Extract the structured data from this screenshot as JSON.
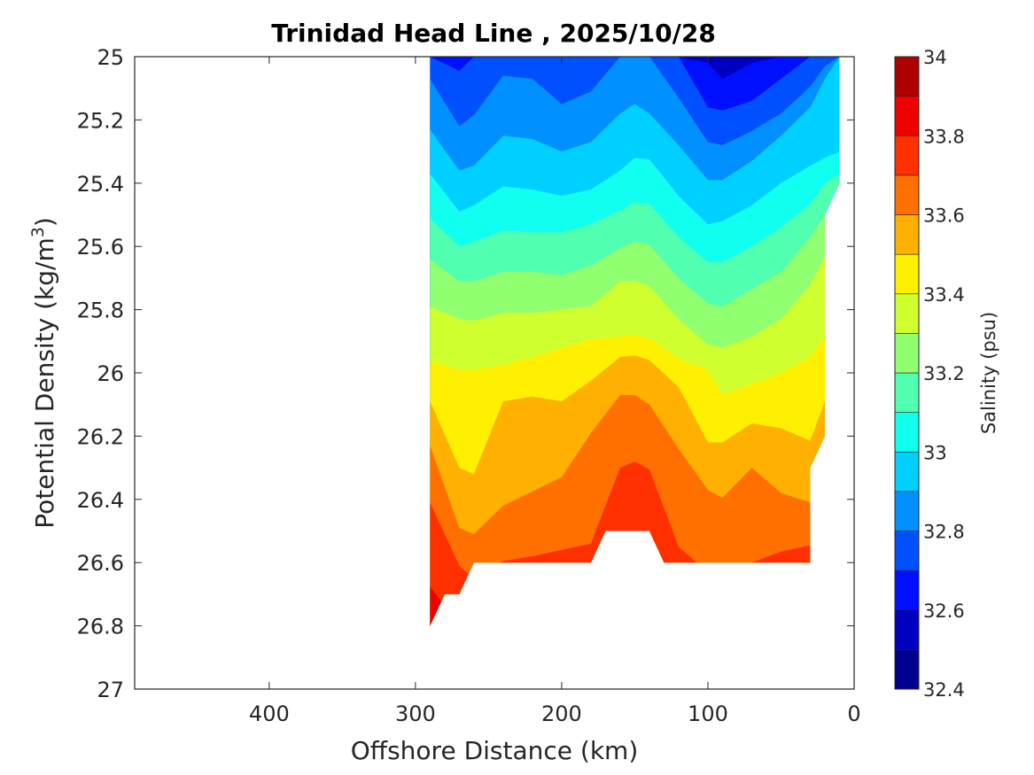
{
  "chart_data": {
    "type": "contourf",
    "title": "Trinidad Head Line , 2025/10/28",
    "xlabel": "Offshore Distance (km)",
    "ylabel_main": "Potential Density (kg/m",
    "ylabel_sup": "3",
    "ylabel_end": ")",
    "colorbar_label": "Salinity (psu)",
    "xlim": [
      0,
      492
    ],
    "x_reversed": true,
    "ylim": [
      25,
      27
    ],
    "y_reversed": true,
    "xticks": [
      400,
      300,
      200,
      100,
      0
    ],
    "xtick_labels": [
      "400",
      "300",
      "200",
      "100",
      "0"
    ],
    "yticks": [
      25,
      25.2,
      25.4,
      25.6,
      25.8,
      26,
      26.2,
      26.4,
      26.6,
      26.8,
      27
    ],
    "ytick_labels": [
      "25",
      "25.2",
      "25.4",
      "25.6",
      "25.8",
      "26",
      "26.2",
      "26.4",
      "26.6",
      "26.8",
      "27"
    ],
    "colorbar": {
      "range": [
        32.4,
        34
      ],
      "ticks": [
        32.4,
        32.6,
        32.8,
        33,
        33.2,
        33.4,
        33.6,
        33.8,
        34
      ],
      "tick_labels": [
        "32.4",
        "32.6",
        "32.8",
        "33",
        "33.2",
        "33.4",
        "33.6",
        "33.8",
        "34"
      ],
      "colors": [
        "#000090",
        "#0000c0",
        "#0010ff",
        "#0050ff",
        "#0090ff",
        "#00d0ff",
        "#10ffef",
        "#50ffaf",
        "#90ff70",
        "#d0ff30",
        "#ffef00",
        "#ffb000",
        "#ff7000",
        "#ff3000",
        "#ef0000",
        "#b00000"
      ]
    },
    "stations_km": [
      290,
      270,
      260,
      240,
      220,
      200,
      180,
      160,
      150,
      140,
      120,
      100,
      90,
      70,
      50,
      30,
      20,
      10
    ],
    "data_coverage": [
      [
        290,
        25
      ],
      [
        10,
        25
      ],
      [
        10,
        25.4
      ],
      [
        20,
        25.5
      ],
      [
        20,
        26.2
      ],
      [
        30,
        26.3
      ],
      [
        30,
        26.6
      ],
      [
        130,
        26.6
      ],
      [
        140,
        26.5
      ],
      [
        170,
        26.5
      ],
      [
        180,
        26.6
      ],
      [
        260,
        26.6
      ],
      [
        270,
        26.7
      ],
      [
        280,
        26.7
      ],
      [
        290,
        26.8
      ]
    ],
    "isohalines": [
      {
        "level": 32.6,
        "density": [
          25,
          25,
          25,
          25,
          25,
          25,
          25,
          25,
          25,
          25,
          25,
          25.02,
          25.07,
          25.02,
          25,
          25,
          25,
          25
        ]
      },
      {
        "level": 32.7,
        "density": [
          25,
          25.045,
          25,
          25,
          25,
          25,
          25,
          25,
          25,
          25,
          25,
          25.16,
          25.17,
          25.14,
          25.07,
          25,
          25,
          25
        ]
      },
      {
        "level": 32.8,
        "density": [
          25.07,
          25.22,
          25.185,
          25.06,
          25.07,
          25.15,
          25.11,
          25,
          25,
          25,
          25.13,
          25.27,
          25.28,
          25.235,
          25.18,
          25.095,
          25.03,
          25
        ]
      },
      {
        "level": 32.9,
        "density": [
          25.23,
          25.36,
          25.345,
          25.25,
          25.26,
          25.3,
          25.27,
          25.18,
          25.15,
          25.18,
          25.28,
          25.39,
          25.39,
          25.33,
          25.25,
          25.16,
          25.07,
          25
        ]
      },
      {
        "level": 33.0,
        "density": [
          25.37,
          25.49,
          25.47,
          25.41,
          25.42,
          25.44,
          25.42,
          25.36,
          25.32,
          25.325,
          25.44,
          25.53,
          25.52,
          25.47,
          25.4,
          25.345,
          25.32,
          25.3
        ]
      },
      {
        "level": 33.1,
        "density": [
          25.51,
          25.6,
          25.585,
          25.55,
          25.555,
          25.555,
          25.53,
          25.485,
          25.46,
          25.465,
          25.57,
          25.65,
          25.65,
          25.6,
          25.54,
          25.465,
          25.4,
          25.37
        ]
      },
      {
        "level": 33.2,
        "density": [
          25.64,
          25.71,
          25.71,
          25.68,
          25.68,
          25.69,
          25.66,
          25.605,
          25.585,
          25.595,
          25.7,
          25.78,
          25.79,
          25.735,
          25.68,
          25.57,
          25.5,
          25.45
        ]
      },
      {
        "level": 33.3,
        "density": [
          25.79,
          25.83,
          25.835,
          25.81,
          25.81,
          25.8,
          25.79,
          25.71,
          25.71,
          25.725,
          25.83,
          25.91,
          25.92,
          25.885,
          25.83,
          25.72,
          25.63,
          25.55
        ]
      },
      {
        "level": 33.4,
        "density": [
          25.96,
          25.99,
          25.99,
          25.975,
          25.95,
          25.92,
          25.895,
          25.885,
          25.88,
          25.89,
          25.955,
          25.99,
          26.07,
          26.035,
          26.0,
          25.95,
          25.885,
          25.8
        ]
      },
      {
        "level": 33.5,
        "density": [
          26.09,
          26.3,
          26.32,
          26.09,
          26.075,
          26.09,
          26.025,
          25.95,
          25.945,
          25.96,
          26.045,
          26.22,
          26.22,
          26.16,
          26.175,
          26.215,
          26.09,
          26.0
        ]
      },
      {
        "level": 33.6,
        "density": [
          26.23,
          26.49,
          26.51,
          26.42,
          26.375,
          26.33,
          26.19,
          26.07,
          26.07,
          26.1,
          26.24,
          26.37,
          26.395,
          26.3,
          26.38,
          26.41,
          26.3,
          26.3
        ]
      },
      {
        "level": 33.7,
        "density": [
          26.41,
          26.61,
          26.65,
          26.595,
          26.58,
          26.56,
          26.54,
          26.3,
          26.28,
          26.305,
          26.55,
          26.63,
          26.65,
          26.6,
          26.565,
          26.545,
          26.6,
          26.6
        ]
      },
      {
        "level": 33.8,
        "density": [
          26.675,
          26.8,
          26.9,
          26.9,
          26.9,
          26.9,
          26.9,
          26.9,
          26.9,
          26.9,
          26.9,
          26.9,
          26.9,
          26.9,
          26.9,
          26.9,
          26.9,
          26.9
        ]
      }
    ],
    "grid": false
  }
}
